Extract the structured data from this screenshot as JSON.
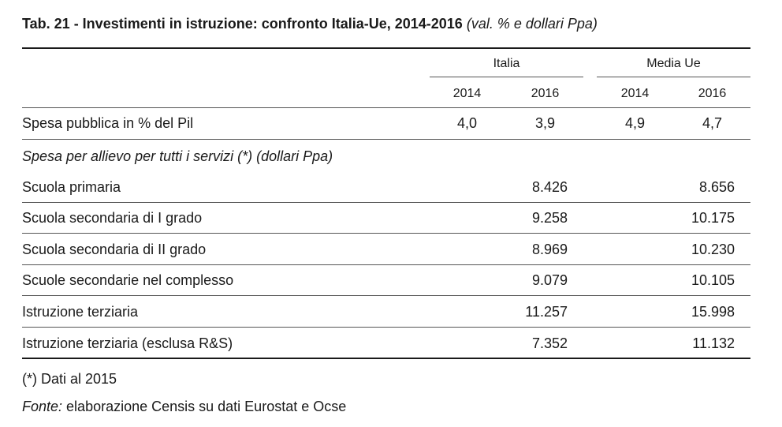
{
  "title": {
    "main": "Tab. 21 - Investimenti in istruzione: confronto Italia-Ue, 2014-2016",
    "sub": "(val. % e dollari Ppa)"
  },
  "groups": {
    "italia": "Italia",
    "ue": "Media Ue"
  },
  "years": [
    "2014",
    "2016",
    "2014",
    "2016"
  ],
  "pil_row": {
    "label": "Spesa pubblica in % del Pil",
    "values": [
      "4,0",
      "3,9",
      "4,9",
      "4,7"
    ]
  },
  "section_label": "Spesa per allievo per tutti i servizi (*) (dollari Ppa)",
  "rows": [
    {
      "label": "Scuola primaria",
      "italia_2016": "8.426",
      "ue_2016": "8.656"
    },
    {
      "label": "Scuola secondaria di I grado",
      "italia_2016": "9.258",
      "ue_2016": "10.175"
    },
    {
      "label": "Scuola secondaria di II grado",
      "italia_2016": "8.969",
      "ue_2016": "10.230"
    },
    {
      "label": "Scuole secondarie nel complesso",
      "italia_2016": "9.079",
      "ue_2016": "10.105"
    },
    {
      "label": "Istruzione terziaria",
      "italia_2016": "11.257",
      "ue_2016": "15.998"
    },
    {
      "label": "Istruzione terziaria (esclusa R&S)",
      "italia_2016": "7.352",
      "ue_2016": "11.132"
    }
  ],
  "footnote": "(*) Dati al 2015",
  "source": {
    "label": "Fonte:",
    "text": "elaborazione Censis su dati Eurostat e Ocse"
  }
}
